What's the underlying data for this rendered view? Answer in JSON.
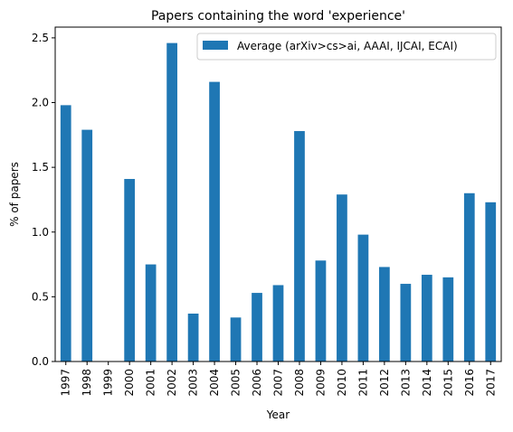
{
  "chart_data": {
    "type": "bar",
    "title": "Papers containing the word 'experience'",
    "xlabel": "Year",
    "ylabel": "% of papers",
    "categories": [
      "1997",
      "1998",
      "1999",
      "2000",
      "2001",
      "2002",
      "2003",
      "2004",
      "2005",
      "2006",
      "2007",
      "2008",
      "2009",
      "2010",
      "2011",
      "2012",
      "2013",
      "2014",
      "2015",
      "2016",
      "2017"
    ],
    "series": [
      {
        "name": "Average (arXiv>cs>ai, AAAI, IJCAI, ECAI)",
        "values": [
          1.98,
          1.79,
          0.0,
          1.41,
          0.75,
          2.46,
          0.37,
          2.16,
          0.34,
          0.53,
          0.59,
          1.78,
          0.78,
          1.29,
          0.98,
          0.73,
          0.6,
          0.67,
          0.65,
          1.3,
          1.23
        ],
        "color": "#1f77b4"
      }
    ],
    "ylim": [
      0,
      2.583
    ],
    "yticks": [
      0.0,
      0.5,
      1.0,
      1.5,
      2.0,
      2.5
    ],
    "ytick_labels": [
      "0.0",
      "0.5",
      "1.0",
      "1.5",
      "2.0",
      "2.5"
    ],
    "grid": false,
    "legend_position": "top-right"
  }
}
